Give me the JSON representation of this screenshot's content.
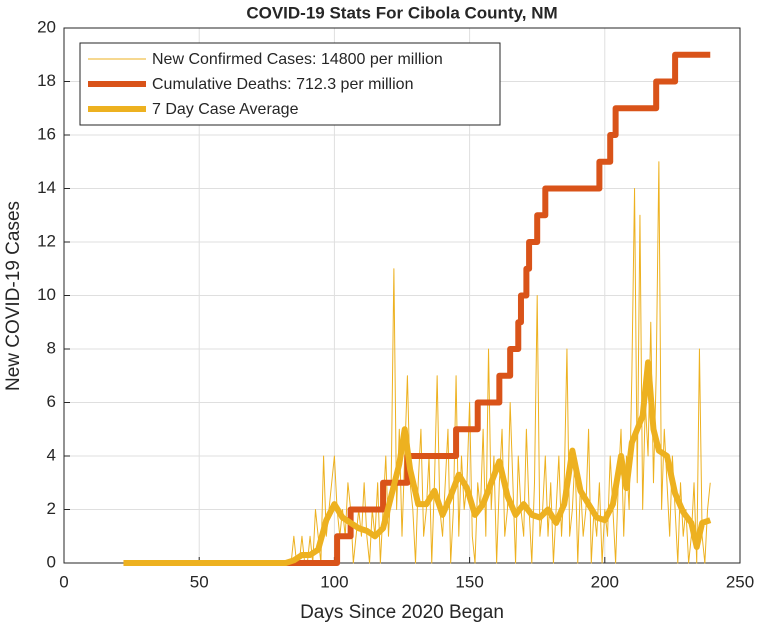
{
  "chart_data": {
    "type": "line",
    "title": "COVID-19 Stats For Cibola County, NM",
    "x_label": "Days Since 2020 Began",
    "y_label": "New COVID-19 Cases",
    "xlim": [
      0,
      250
    ],
    "xticks": [
      0,
      50,
      100,
      150,
      200,
      250
    ],
    "ylim": [
      0,
      20
    ],
    "yticks": [
      0,
      2,
      4,
      6,
      8,
      10,
      12,
      14,
      16,
      18,
      20
    ],
    "grid": true,
    "legend": "upper left",
    "series": [
      {
        "name": "New Confirmed Cases: 14800 per million",
        "color": "#EDB120",
        "width": 1,
        "x": [
          22,
          23,
          24,
          25,
          26,
          27,
          28,
          29,
          30,
          31,
          32,
          33,
          34,
          35,
          36,
          37,
          38,
          39,
          40,
          41,
          42,
          43,
          44,
          45,
          46,
          47,
          48,
          49,
          50,
          51,
          52,
          53,
          54,
          55,
          56,
          57,
          58,
          59,
          60,
          61,
          62,
          63,
          64,
          65,
          66,
          67,
          68,
          69,
          70,
          71,
          72,
          73,
          74,
          75,
          76,
          77,
          78,
          79,
          80,
          81,
          82,
          83,
          84,
          85,
          86,
          87,
          88,
          89,
          90,
          91,
          92,
          93,
          94,
          95,
          96,
          97,
          98,
          99,
          100,
          101,
          102,
          103,
          104,
          105,
          106,
          107,
          108,
          109,
          110,
          111,
          112,
          113,
          114,
          115,
          116,
          117,
          118,
          119,
          120,
          121,
          122,
          123,
          124,
          125,
          126,
          127,
          128,
          129,
          130,
          131,
          132,
          133,
          134,
          135,
          136,
          137,
          138,
          139,
          140,
          141,
          142,
          143,
          144,
          145,
          146,
          147,
          148,
          149,
          150,
          151,
          152,
          153,
          154,
          155,
          156,
          157,
          158,
          159,
          160,
          161,
          162,
          163,
          164,
          165,
          166,
          167,
          168,
          169,
          170,
          171,
          172,
          173,
          174,
          175,
          176,
          177,
          178,
          179,
          180,
          181,
          182,
          183,
          184,
          185,
          186,
          187,
          188,
          189,
          190,
          191,
          192,
          193,
          194,
          195,
          196,
          197,
          198,
          199,
          200,
          201,
          202,
          203,
          204,
          205,
          206,
          207,
          208,
          209,
          210,
          211,
          212,
          213,
          214,
          215,
          216,
          217,
          218,
          219,
          220,
          221,
          222,
          223,
          224,
          225,
          226,
          227,
          228,
          229,
          230,
          231,
          232,
          233,
          234,
          235,
          236,
          237,
          238,
          239
        ],
        "values": [
          0,
          0,
          0,
          0,
          0,
          0,
          0,
          0,
          0,
          0,
          0,
          0,
          0,
          0,
          0,
          0,
          0,
          0,
          0,
          0,
          0,
          0,
          0,
          0,
          0,
          0,
          0,
          0,
          0,
          0,
          0,
          0,
          0,
          0,
          0,
          0,
          0,
          0,
          0,
          0,
          0,
          0,
          0,
          0,
          0,
          0,
          0,
          0,
          0,
          0,
          0,
          0,
          0,
          0,
          0,
          0,
          0,
          0,
          0,
          0,
          0,
          0,
          0,
          1,
          0,
          0,
          1,
          0,
          0,
          1,
          0,
          2,
          1,
          0,
          4,
          1,
          2,
          3,
          4,
          2,
          1,
          2,
          1,
          3,
          2,
          0,
          1,
          2,
          1,
          3,
          1,
          0,
          2,
          1,
          3,
          0,
          2,
          4,
          1,
          3,
          11,
          2,
          5,
          1,
          4,
          7,
          3,
          2,
          0,
          3,
          5,
          1,
          2,
          4,
          0,
          3,
          7,
          2,
          1,
          3,
          5,
          0,
          2,
          7,
          1,
          4,
          2,
          3,
          6,
          1,
          0,
          3,
          2,
          5,
          1,
          8,
          2,
          4,
          0,
          3,
          5,
          1,
          2,
          6,
          3,
          0,
          4,
          2,
          1,
          5,
          2,
          0,
          3,
          10,
          1,
          2,
          4,
          1,
          3,
          0,
          2,
          4,
          1,
          3,
          8,
          1,
          2,
          4,
          0,
          3,
          1,
          2,
          5,
          0,
          2,
          1,
          3,
          0,
          2,
          1,
          4,
          2,
          0,
          3,
          5,
          1,
          4,
          2,
          7,
          14,
          3,
          13,
          2,
          6,
          4,
          9,
          3,
          7,
          15,
          2,
          5,
          3,
          1,
          4,
          2,
          0,
          3,
          1,
          2,
          0,
          1,
          3,
          0,
          8,
          1,
          0,
          2,
          3
        ]
      },
      {
        "name": "Cumulative Deaths: 712.3 per million",
        "color": "#D95319",
        "width": 6,
        "x": [
          22,
          101,
          101,
          106,
          106,
          118,
          118,
          127,
          127,
          145,
          145,
          153,
          153,
          161,
          161,
          165,
          165,
          168,
          168,
          169,
          169,
          171,
          171,
          172,
          172,
          175,
          175,
          178,
          178,
          198,
          198,
          202,
          202,
          204,
          204,
          219,
          219,
          226,
          226,
          239
        ],
        "values": [
          0,
          0,
          1,
          1,
          2,
          2,
          3,
          3,
          4,
          4,
          5,
          5,
          6,
          6,
          7,
          7,
          8,
          8,
          9,
          9,
          10,
          10,
          11,
          11,
          12,
          12,
          13,
          13,
          14,
          14,
          15,
          15,
          16,
          16,
          17,
          17,
          18,
          18,
          19,
          19
        ]
      },
      {
        "name": "7 Day Case Average",
        "color": "#EDB120",
        "width": 6,
        "x": [
          22,
          82,
          85,
          88,
          91,
          94,
          97,
          100,
          103,
          106,
          109,
          112,
          115,
          118,
          121,
          124,
          126,
          128,
          131,
          134,
          137,
          140,
          143,
          146,
          149,
          152,
          155,
          158,
          161,
          164,
          167,
          170,
          173,
          176,
          179,
          182,
          185,
          188,
          191,
          194,
          197,
          200,
          203,
          206,
          208,
          210,
          212,
          214,
          216,
          218,
          220,
          223,
          226,
          229,
          232,
          234,
          236,
          239
        ],
        "values": [
          0,
          0,
          0.1,
          0.3,
          0.3,
          0.5,
          1.6,
          2.2,
          1.7,
          1.5,
          1.3,
          1.2,
          1,
          1.3,
          2.5,
          3.7,
          5,
          3.5,
          2.2,
          2.2,
          2.7,
          1.8,
          2.5,
          3.3,
          2.8,
          1.8,
          2.2,
          3,
          3.8,
          2.5,
          1.8,
          2.2,
          1.8,
          1.7,
          2,
          1.5,
          2.2,
          4.2,
          2.7,
          2.2,
          1.7,
          1.6,
          2.2,
          4,
          2.8,
          4.5,
          5,
          5.5,
          7.5,
          5,
          4.2,
          4,
          2.6,
          1.9,
          1.5,
          0.6,
          1.5,
          1.6
        ]
      }
    ]
  }
}
